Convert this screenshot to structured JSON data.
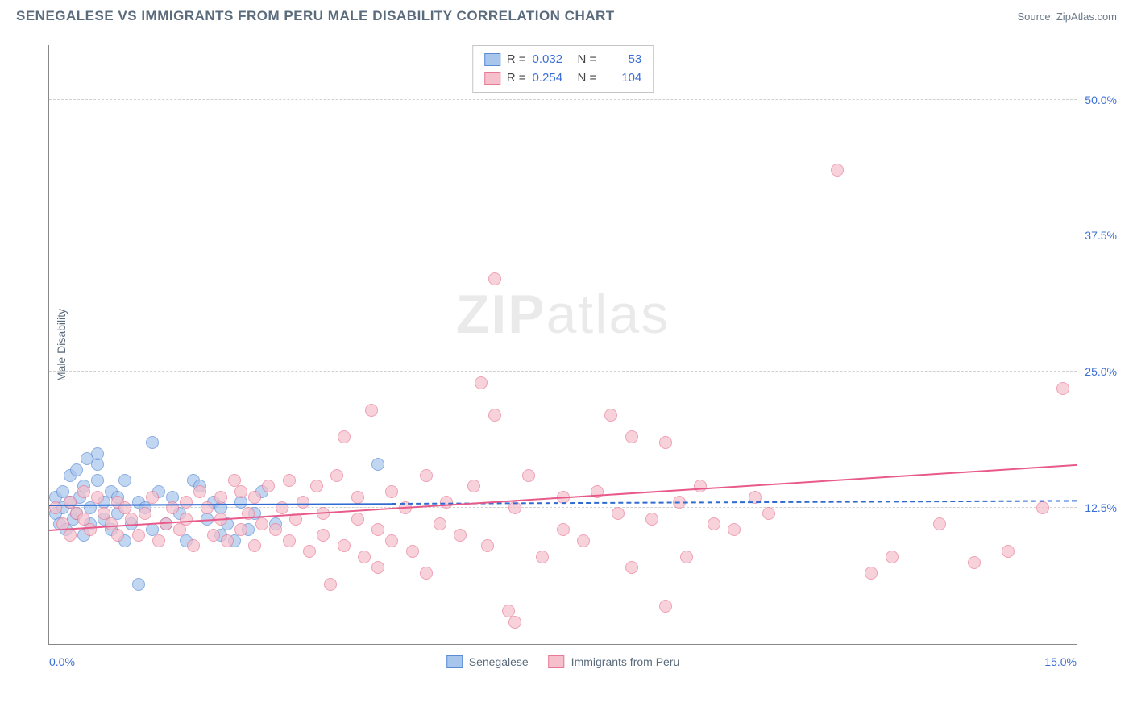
{
  "title": "SENEGALESE VS IMMIGRANTS FROM PERU MALE DISABILITY CORRELATION CHART",
  "source": "Source: ZipAtlas.com",
  "watermark": {
    "zip": "ZIP",
    "atlas": "atlas"
  },
  "chart": {
    "type": "scatter",
    "y_axis_title": "Male Disability",
    "xlim": [
      0,
      15
    ],
    "ylim": [
      0,
      55
    ],
    "x_ticks": [
      {
        "v": 0,
        "label": "0.0%"
      },
      {
        "v": 15,
        "label": "15.0%"
      }
    ],
    "y_ticks": [
      {
        "v": 12.5,
        "label": "12.5%"
      },
      {
        "v": 25.0,
        "label": "25.0%"
      },
      {
        "v": 37.5,
        "label": "37.5%"
      },
      {
        "v": 50.0,
        "label": "50.0%"
      }
    ],
    "grid_color": "#d0d0d0",
    "background_color": "#ffffff",
    "series": [
      {
        "name": "Senegalese",
        "marker_fill": "#a8c5ec",
        "marker_stroke": "#5a8cd6",
        "line_color": "#2f6bd0",
        "R": "0.032",
        "N": "53",
        "trend": {
          "x1": 0,
          "y1": 12.8,
          "x2": 15,
          "y2": 13.2,
          "solid_until_x": 5.0
        },
        "points": [
          [
            0.1,
            12.0
          ],
          [
            0.1,
            13.5
          ],
          [
            0.15,
            11.0
          ],
          [
            0.2,
            14.0
          ],
          [
            0.2,
            12.5
          ],
          [
            0.25,
            10.5
          ],
          [
            0.3,
            13.0
          ],
          [
            0.3,
            15.5
          ],
          [
            0.35,
            11.5
          ],
          [
            0.4,
            12.0
          ],
          [
            0.4,
            16.0
          ],
          [
            0.45,
            13.5
          ],
          [
            0.5,
            14.5
          ],
          [
            0.5,
            10.0
          ],
          [
            0.55,
            17.0
          ],
          [
            0.6,
            12.5
          ],
          [
            0.6,
            11.0
          ],
          [
            0.7,
            15.0
          ],
          [
            0.7,
            16.5
          ],
          [
            0.8,
            13.0
          ],
          [
            0.8,
            11.5
          ],
          [
            0.9,
            14.0
          ],
          [
            0.9,
            10.5
          ],
          [
            1.0,
            12.0
          ],
          [
            1.0,
            13.5
          ],
          [
            1.1,
            9.5
          ],
          [
            1.1,
            15.0
          ],
          [
            1.2,
            11.0
          ],
          [
            1.3,
            13.0
          ],
          [
            1.3,
            5.5
          ],
          [
            1.4,
            12.5
          ],
          [
            1.5,
            18.5
          ],
          [
            1.5,
            10.5
          ],
          [
            1.6,
            14.0
          ],
          [
            1.7,
            11.0
          ],
          [
            1.8,
            13.5
          ],
          [
            1.9,
            12.0
          ],
          [
            2.0,
            9.5
          ],
          [
            2.1,
            15.0
          ],
          [
            2.2,
            14.5
          ],
          [
            2.3,
            11.5
          ],
          [
            2.4,
            13.0
          ],
          [
            2.5,
            10.0
          ],
          [
            2.5,
            12.5
          ],
          [
            2.6,
            11.0
          ],
          [
            2.7,
            9.5
          ],
          [
            2.8,
            13.0
          ],
          [
            2.9,
            10.5
          ],
          [
            3.0,
            12.0
          ],
          [
            3.1,
            14.0
          ],
          [
            3.3,
            11.0
          ],
          [
            4.8,
            16.5
          ],
          [
            0.7,
            17.5
          ]
        ]
      },
      {
        "name": "Immigrants from Peru",
        "marker_fill": "#f5c0cc",
        "marker_stroke": "#e87a96",
        "line_color": "#e85a8a",
        "R": "0.254",
        "N": "104",
        "trend": {
          "x1": 0,
          "y1": 10.5,
          "x2": 15,
          "y2": 16.5,
          "solid_until_x": 15.0
        },
        "points": [
          [
            0.1,
            12.5
          ],
          [
            0.2,
            11.0
          ],
          [
            0.3,
            13.0
          ],
          [
            0.3,
            10.0
          ],
          [
            0.4,
            12.0
          ],
          [
            0.5,
            11.5
          ],
          [
            0.5,
            14.0
          ],
          [
            0.6,
            10.5
          ],
          [
            0.7,
            13.5
          ],
          [
            0.8,
            12.0
          ],
          [
            0.9,
            11.0
          ],
          [
            1.0,
            10.0
          ],
          [
            1.0,
            13.0
          ],
          [
            1.1,
            12.5
          ],
          [
            1.2,
            11.5
          ],
          [
            1.3,
            10.0
          ],
          [
            1.4,
            12.0
          ],
          [
            1.5,
            13.5
          ],
          [
            1.6,
            9.5
          ],
          [
            1.7,
            11.0
          ],
          [
            1.8,
            12.5
          ],
          [
            1.9,
            10.5
          ],
          [
            2.0,
            13.0
          ],
          [
            2.0,
            11.5
          ],
          [
            2.1,
            9.0
          ],
          [
            2.2,
            14.0
          ],
          [
            2.3,
            12.5
          ],
          [
            2.4,
            10.0
          ],
          [
            2.5,
            11.5
          ],
          [
            2.5,
            13.5
          ],
          [
            2.6,
            9.5
          ],
          [
            2.7,
            15.0
          ],
          [
            2.8,
            14.0
          ],
          [
            2.8,
            10.5
          ],
          [
            2.9,
            12.0
          ],
          [
            3.0,
            13.5
          ],
          [
            3.0,
            9.0
          ],
          [
            3.1,
            11.0
          ],
          [
            3.2,
            14.5
          ],
          [
            3.3,
            10.5
          ],
          [
            3.4,
            12.5
          ],
          [
            3.5,
            9.5
          ],
          [
            3.5,
            15.0
          ],
          [
            3.6,
            11.5
          ],
          [
            3.7,
            13.0
          ],
          [
            3.8,
            8.5
          ],
          [
            3.9,
            14.5
          ],
          [
            4.0,
            10.0
          ],
          [
            4.0,
            12.0
          ],
          [
            4.1,
            5.5
          ],
          [
            4.2,
            15.5
          ],
          [
            4.3,
            9.0
          ],
          [
            4.3,
            19.0
          ],
          [
            4.5,
            11.5
          ],
          [
            4.5,
            13.5
          ],
          [
            4.6,
            8.0
          ],
          [
            4.7,
            21.5
          ],
          [
            4.8,
            10.5
          ],
          [
            4.8,
            7.0
          ],
          [
            5.0,
            14.0
          ],
          [
            5.0,
            9.5
          ],
          [
            5.2,
            12.5
          ],
          [
            5.3,
            8.5
          ],
          [
            5.5,
            15.5
          ],
          [
            5.5,
            6.5
          ],
          [
            5.7,
            11.0
          ],
          [
            5.8,
            13.0
          ],
          [
            6.0,
            10.0
          ],
          [
            6.2,
            14.5
          ],
          [
            6.3,
            24.0
          ],
          [
            6.4,
            9.0
          ],
          [
            6.5,
            33.5
          ],
          [
            6.5,
            21.0
          ],
          [
            6.7,
            3.0
          ],
          [
            6.8,
            12.5
          ],
          [
            6.8,
            2.0
          ],
          [
            7.0,
            15.5
          ],
          [
            7.2,
            8.0
          ],
          [
            7.5,
            13.5
          ],
          [
            7.5,
            10.5
          ],
          [
            7.8,
            9.5
          ],
          [
            8.0,
            14.0
          ],
          [
            8.2,
            21.0
          ],
          [
            8.3,
            12.0
          ],
          [
            8.5,
            19.0
          ],
          [
            8.5,
            7.0
          ],
          [
            8.8,
            11.5
          ],
          [
            9.0,
            18.5
          ],
          [
            9.0,
            3.5
          ],
          [
            9.2,
            13.0
          ],
          [
            9.3,
            8.0
          ],
          [
            9.5,
            14.5
          ],
          [
            9.7,
            11.0
          ],
          [
            10.0,
            10.5
          ],
          [
            10.3,
            13.5
          ],
          [
            10.5,
            12.0
          ],
          [
            11.5,
            43.5
          ],
          [
            12.0,
            6.5
          ],
          [
            12.3,
            8.0
          ],
          [
            13.0,
            11.0
          ],
          [
            13.5,
            7.5
          ],
          [
            14.8,
            23.5
          ],
          [
            14.0,
            8.5
          ],
          [
            14.5,
            12.5
          ]
        ]
      }
    ]
  }
}
